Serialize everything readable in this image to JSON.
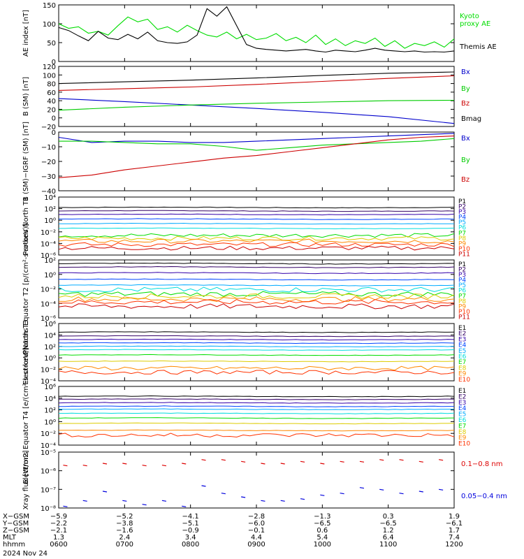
{
  "colors": {
    "axis": "#000000",
    "kyoto": "#00dd00",
    "themis": "#000000",
    "bx": "#0000cc",
    "by": "#00cc00",
    "bz": "#cc0000",
    "bmag": "#000000",
    "xray_short": "#dd0000",
    "xray_long": "#0000dd",
    "energy_channels": [
      "#000000",
      "#330066",
      "#3300aa",
      "#0044ff",
      "#00aaff",
      "#00dddd",
      "#00dd00",
      "#ddcc00",
      "#ff8800",
      "#ff3300",
      "#cc0000"
    ]
  },
  "chart_data": [
    {
      "id": "ae",
      "type": "line",
      "ylabel": "AE index [nT]",
      "ylim": [
        0,
        150
      ],
      "yticks": [
        "0",
        "50",
        "100",
        "150"
      ],
      "series": [
        {
          "name": "Kyoto proxy AE",
          "x": [
            6.0,
            6.15,
            6.3,
            6.45,
            6.6,
            6.75,
            6.9,
            7.05,
            7.2,
            7.35,
            7.5,
            7.65,
            7.8,
            7.95,
            8.1,
            8.25,
            8.4,
            8.55,
            8.7,
            8.85,
            9.0,
            9.15,
            9.3,
            9.45,
            9.6,
            9.75,
            9.9,
            10.05,
            10.2,
            10.35,
            10.5,
            10.65,
            10.8,
            10.95,
            11.1,
            11.25,
            11.4,
            11.55,
            11.7,
            11.85,
            12.0
          ],
          "values": [
            100,
            88,
            92,
            75,
            80,
            70,
            95,
            118,
            105,
            112,
            85,
            92,
            78,
            96,
            82,
            70,
            65,
            78,
            60,
            72,
            58,
            62,
            74,
            55,
            64,
            50,
            70,
            45,
            60,
            42,
            55,
            48,
            62,
            40,
            55,
            35,
            48,
            42,
            52,
            38,
            60
          ]
        },
        {
          "name": "Themis AE",
          "x": [
            6.0,
            6.15,
            6.3,
            6.45,
            6.6,
            6.75,
            6.9,
            7.05,
            7.2,
            7.35,
            7.5,
            7.65,
            7.8,
            7.95,
            8.1,
            8.25,
            8.4,
            8.55,
            8.7,
            8.85,
            9.0,
            9.15,
            9.3,
            9.45,
            9.6,
            9.75,
            9.9,
            10.05,
            10.2,
            10.35,
            10.5,
            10.65,
            10.8,
            10.95,
            11.1,
            11.25,
            11.4,
            11.55,
            11.7,
            11.85,
            12.0
          ],
          "values": [
            90,
            82,
            68,
            55,
            80,
            62,
            58,
            72,
            60,
            78,
            55,
            50,
            48,
            52,
            70,
            140,
            120,
            145,
            95,
            45,
            35,
            32,
            30,
            28,
            30,
            32,
            28,
            25,
            30,
            28,
            26,
            30,
            35,
            30,
            28,
            26,
            28,
            25,
            26,
            25,
            28
          ]
        }
      ]
    },
    {
      "id": "bsm",
      "type": "line",
      "ylabel": "B (SM) [nT]",
      "ylim": [
        -20,
        120
      ],
      "yticks": [
        "−20",
        "0",
        "20",
        "40",
        "60",
        "80",
        "100",
        "120"
      ],
      "series": [
        {
          "name": "Bx",
          "x": [
            6,
            7,
            8,
            9,
            10,
            11,
            12
          ],
          "values": [
            45,
            38,
            30,
            22,
            13,
            3,
            -13
          ]
        },
        {
          "name": "By",
          "x": [
            6,
            7,
            8,
            9,
            10,
            11,
            12
          ],
          "values": [
            18,
            25,
            30,
            34,
            37,
            40,
            41
          ]
        },
        {
          "name": "Bz",
          "x": [
            6,
            7,
            8,
            9,
            10,
            11,
            12
          ],
          "values": [
            64,
            68,
            72,
            78,
            85,
            92,
            98
          ]
        },
        {
          "name": "Bmag",
          "x": [
            6,
            7,
            8,
            9,
            10,
            11,
            12
          ],
          "values": [
            80,
            84,
            88,
            93,
            99,
            104,
            107
          ]
        }
      ]
    },
    {
      "id": "bigrf",
      "type": "line",
      "ylabel": "B (SM)−IGRF (SM) [nT]",
      "ylim": [
        -40,
        5
      ],
      "yticks": [
        "−40",
        "−30",
        "−20",
        "−10",
        "0"
      ],
      "series": [
        {
          "name": "Bx",
          "x": [
            6,
            6.5,
            7,
            7.5,
            8,
            8.5,
            9,
            9.5,
            10,
            10.5,
            11,
            11.5,
            12
          ],
          "values": [
            1,
            -3,
            -2,
            -2,
            -3,
            -3,
            -2,
            -1,
            0,
            1,
            2,
            3,
            4
          ]
        },
        {
          "name": "By",
          "x": [
            6,
            6.5,
            7,
            7.5,
            8,
            8.5,
            9,
            9.5,
            10,
            10.5,
            11,
            11.5,
            12
          ],
          "values": [
            -2,
            -2,
            -3,
            -4,
            -4,
            -6,
            -9,
            -7,
            -5,
            -4,
            -3,
            -2,
            0
          ]
        },
        {
          "name": "Bz",
          "x": [
            6,
            6.5,
            7,
            7.5,
            8,
            8.5,
            9,
            9.5,
            10,
            10.5,
            11,
            11.5,
            12
          ],
          "values": [
            -30,
            -28,
            -24,
            -21,
            -18,
            -15,
            -13,
            -10,
            -7,
            -4,
            -1,
            1,
            2
          ]
        }
      ]
    },
    {
      "id": "pnorth",
      "type": "line",
      "ylabel": "Protons North T1",
      "ylim": [
        -6,
        4
      ],
      "ylog": true,
      "yticks": [
        "10⁻⁶",
        "10⁻⁴",
        "10⁻²",
        "10⁰",
        "10²",
        "10⁴"
      ],
      "legend": [
        "P1",
        "P2",
        "P3",
        "P4",
        "P5",
        "P6",
        "P7",
        "P8",
        "P9",
        "P10",
        "P11"
      ],
      "levels": [
        2.2,
        1.6,
        1.0,
        0.2,
        -0.6,
        -1.4,
        -2.6,
        -3.1,
        -3.6,
        -4.2,
        -4.8
      ]
    },
    {
      "id": "pequator",
      "type": "line",
      "ylabel": "Protons Equator T2 [p/(cm²-s-sr-keV)]",
      "ylim": [
        -6,
        2
      ],
      "ylog": true,
      "yticks": [
        "10⁻⁶",
        "10⁻⁴",
        "10⁻²",
        "10⁰",
        "10²"
      ],
      "legend": [
        "P1",
        "P2",
        "P3",
        "P4",
        "P5",
        "P6",
        "P7",
        "P8",
        "P9",
        "P10",
        "P11"
      ],
      "levels": [
        1.5,
        1.0,
        0.2,
        -0.7,
        -1.5,
        -2.1,
        -2.7,
        -3.0,
        -3.4,
        -3.8,
        -4.4
      ]
    },
    {
      "id": "enorth",
      "type": "line",
      "ylabel": "Electrons North T3",
      "ylim": [
        -4,
        6
      ],
      "ylog": true,
      "yticks": [
        "10⁻⁴",
        "10⁻²",
        "10⁰",
        "10²",
        "10⁴",
        "10⁶"
      ],
      "legend": [
        "E1",
        "E2",
        "E3",
        "E4",
        "E5",
        "E6",
        "E7",
        "E8",
        "E9",
        "E10"
      ],
      "levels": [
        4.5,
        3.8,
        3.2,
        2.6,
        2.0,
        1.4,
        0.5,
        -0.6,
        -1.8,
        -2.5
      ]
    },
    {
      "id": "eequator",
      "type": "line",
      "ylabel": "Electrons Equator T4 [e/(cm²-s-sr-keV)]",
      "ylim": [
        -4,
        6
      ],
      "ylog": true,
      "yticks": [
        "10⁻⁴",
        "10⁻²",
        "10⁰",
        "10²",
        "10⁴",
        "10⁶"
      ],
      "legend": [
        "E1",
        "E2",
        "E3",
        "E4",
        "E5",
        "E6",
        "E7",
        "E8",
        "E9",
        "E10"
      ],
      "levels": [
        4.3,
        3.8,
        3.2,
        2.6,
        2.1,
        1.4,
        0.6,
        -0.3,
        -1.5,
        -2.3
      ]
    },
    {
      "id": "xray",
      "type": "scatter",
      "ylabel": "Xray flux [W/m2]",
      "ylim": [
        -8,
        -5
      ],
      "ylog": true,
      "yticks": [
        "10⁻⁸",
        "10⁻⁷",
        "10⁻⁶",
        "10⁻⁵"
      ],
      "series": [
        {
          "name": "0.1−0.8 nm",
          "x": [
            6.1,
            6.4,
            6.7,
            7.0,
            7.3,
            7.6,
            7.9,
            8.2,
            8.5,
            8.8,
            9.1,
            9.4,
            9.7,
            10.0,
            10.3,
            10.6,
            10.9,
            11.2,
            11.5,
            11.8
          ],
          "values": [
            -5.7,
            -5.7,
            -5.6,
            -5.6,
            -5.7,
            -5.7,
            -5.6,
            -5.4,
            -5.4,
            -5.5,
            -5.6,
            -5.6,
            -5.5,
            -5.6,
            -5.5,
            -5.5,
            -5.4,
            -5.4,
            -5.5,
            -5.4
          ]
        },
        {
          "name": "0.05−0.4 nm",
          "x": [
            6.1,
            6.4,
            6.7,
            7.0,
            7.3,
            7.6,
            7.9,
            8.2,
            8.5,
            8.8,
            9.1,
            9.4,
            9.7,
            10.0,
            10.3,
            10.6,
            10.9,
            11.2,
            11.5,
            11.8
          ],
          "values": [
            -7.9,
            -7.6,
            -7.1,
            -7.6,
            -7.8,
            -7.6,
            -7.9,
            -6.8,
            -7.2,
            -7.4,
            -7.6,
            -7.6,
            -7.5,
            -7.3,
            -7.2,
            -6.9,
            -7.0,
            -7.2,
            -7.1,
            -7.0
          ]
        }
      ]
    }
  ],
  "orbit": {
    "rows": [
      {
        "label": "X−GSM",
        "values": [
          "−5.9",
          "−5.2",
          "−4.1",
          "−2.8",
          "−1.3",
          "0.3",
          "1.9"
        ]
      },
      {
        "label": "Y−GSM",
        "values": [
          "−2.2",
          "−3.8",
          "−5.1",
          "−6.0",
          "−6.5",
          "−6.5",
          "−6.1"
        ]
      },
      {
        "label": "Z−GSM",
        "values": [
          "−2.1",
          "−1.6",
          "−0.9",
          "−0.1",
          "0.6",
          "1.2",
          "1.7"
        ]
      },
      {
        "label": "MLT",
        "values": [
          "1.3",
          "2.4",
          "3.4",
          "4.4",
          "5.4",
          "6.4",
          "7.4"
        ]
      },
      {
        "label": "hhmm",
        "values": [
          "0600",
          "0700",
          "0800",
          "0900",
          "1000",
          "1100",
          "1200"
        ]
      }
    ],
    "date": "2024 Nov 24"
  },
  "legend_text": {
    "ae_kyoto": "Kyoto proxy AE",
    "ae_themis": "Themis AE",
    "bsm": [
      "Bx",
      "By",
      "Bz",
      "Bmag"
    ],
    "bigrf": [
      "Bx",
      "By",
      "Bz"
    ],
    "xray_short": "0.1−0.8 nm",
    "xray_long": "0.05−0.4 nm"
  }
}
